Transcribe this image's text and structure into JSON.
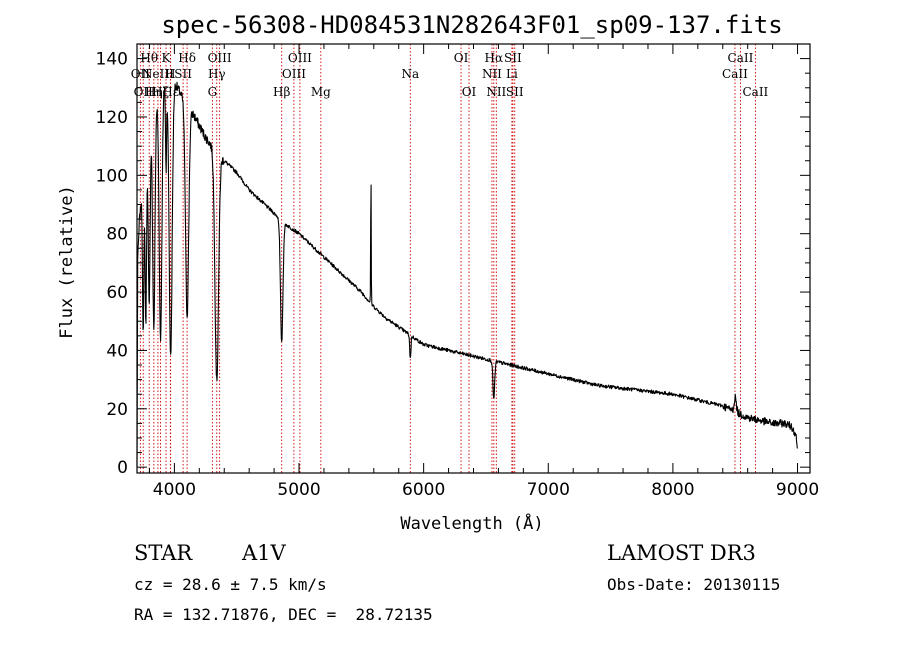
{
  "chart_data": {
    "type": "line",
    "title": "spec-56308-HD084531N282643F01_sp09-137.fits",
    "xlabel": "Wavelength (Å)",
    "ylabel": "Flux (relative)",
    "xlim": [
      3700,
      9100
    ],
    "ylim": [
      -2,
      145
    ],
    "xticks": [
      4000,
      5000,
      6000,
      7000,
      8000,
      9000
    ],
    "xtick_labels": [
      "4000",
      "5000",
      "6000",
      "7000",
      "8000",
      "9000"
    ],
    "yticks": [
      0,
      20,
      40,
      60,
      80,
      100,
      120,
      140
    ],
    "ytick_labels": [
      "0",
      "20",
      "40",
      "60",
      "80",
      "100",
      "120",
      "140"
    ],
    "continuum": [
      [
        3700,
        0
      ],
      [
        3705,
        70
      ],
      [
        3720,
        85
      ],
      [
        3760,
        100
      ],
      [
        3800,
        115
      ],
      [
        3850,
        125
      ],
      [
        3900,
        130
      ],
      [
        3950,
        133
      ],
      [
        4000,
        132
      ],
      [
        4050,
        128
      ],
      [
        4100,
        124
      ],
      [
        4150,
        121
      ],
      [
        4200,
        117
      ],
      [
        4250,
        113
      ],
      [
        4300,
        110
      ],
      [
        4350,
        107
      ],
      [
        4400,
        105
      ],
      [
        4450,
        103
      ],
      [
        4500,
        101
      ],
      [
        4600,
        95
      ],
      [
        4700,
        91
      ],
      [
        4800,
        87
      ],
      [
        4900,
        83
      ],
      [
        5000,
        80
      ],
      [
        5100,
        76
      ],
      [
        5200,
        72
      ],
      [
        5300,
        68
      ],
      [
        5400,
        64
      ],
      [
        5500,
        60
      ],
      [
        5600,
        55
      ],
      [
        5700,
        51
      ],
      [
        5800,
        48
      ],
      [
        5900,
        45
      ],
      [
        6000,
        42
      ],
      [
        6200,
        40
      ],
      [
        6400,
        38
      ],
      [
        6600,
        36
      ],
      [
        6800,
        34
      ],
      [
        7000,
        32
      ],
      [
        7200,
        30
      ],
      [
        7400,
        28
      ],
      [
        7600,
        27
      ],
      [
        7800,
        26
      ],
      [
        8000,
        25
      ],
      [
        8200,
        23
      ],
      [
        8400,
        21
      ],
      [
        8500,
        19
      ],
      [
        8600,
        17
      ],
      [
        8700,
        16
      ],
      [
        8800,
        15
      ],
      [
        8900,
        15
      ],
      [
        8950,
        14
      ],
      [
        8990,
        11
      ],
      [
        9000,
        4
      ]
    ],
    "absorption": [
      {
        "wave": 3750,
        "depth": 50,
        "width": 8
      },
      {
        "wave": 3771,
        "depth": 55,
        "width": 8
      },
      {
        "wave": 3798,
        "depth": 60,
        "width": 10
      },
      {
        "wave": 3835,
        "depth": 75,
        "width": 13
      },
      {
        "wave": 3889,
        "depth": 85,
        "width": 15
      },
      {
        "wave": 3933,
        "depth": 30,
        "width": 6
      },
      {
        "wave": 3970,
        "depth": 95,
        "width": 17
      },
      {
        "wave": 4102,
        "depth": 72,
        "width": 18
      },
      {
        "wave": 4340,
        "depth": 78,
        "width": 20
      },
      {
        "wave": 4861,
        "depth": 42,
        "width": 14
      },
      {
        "wave": 5893,
        "depth": 8,
        "width": 7
      },
      {
        "wave": 6563,
        "depth": 13,
        "width": 10
      }
    ],
    "emission": [
      {
        "wave": 5577,
        "height": 45,
        "width": 3
      },
      {
        "wave": 8500,
        "height": 5,
        "width": 12
      }
    ],
    "line_marks": [
      {
        "wave": 3727,
        "label": "OII",
        "row": 2
      },
      {
        "wave": 3750,
        "label": "OII",
        "row": 3
      },
      {
        "wave": 3798,
        "label": "Hθ",
        "row": 1
      },
      {
        "wave": 3835,
        "label": "Hη",
        "row": 3
      },
      {
        "wave": 3868,
        "label": "NeIII",
        "row": 2
      },
      {
        "wave": 3889,
        "label": "Hζ",
        "row": 3
      },
      {
        "wave": 3933,
        "label": "K",
        "row": 1
      },
      {
        "wave": 3968,
        "label": "H",
        "row": 2
      },
      {
        "wave": 3970,
        "label": "Hε",
        "row": 3
      },
      {
        "wave": 4070,
        "label": "SII",
        "row": 2
      },
      {
        "wave": 4102,
        "label": "Hδ",
        "row": 1
      },
      {
        "wave": 4305,
        "label": "G",
        "row": 3
      },
      {
        "wave": 4340,
        "label": "Hγ",
        "row": 2
      },
      {
        "wave": 4363,
        "label": "OIII",
        "row": 1
      },
      {
        "wave": 4861,
        "label": "Hβ",
        "row": 3
      },
      {
        "wave": 4959,
        "label": "OIII",
        "row": 2
      },
      {
        "wave": 5007,
        "label": "OIII",
        "row": 1
      },
      {
        "wave": 5175,
        "label": "Mg",
        "row": 3
      },
      {
        "wave": 5893,
        "label": "Na",
        "row": 2
      },
      {
        "wave": 6300,
        "label": "OI",
        "row": 1
      },
      {
        "wave": 6364,
        "label": "OI",
        "row": 3
      },
      {
        "wave": 6548,
        "label": "NII",
        "row": 2
      },
      {
        "wave": 6563,
        "label": "Hα",
        "row": 1
      },
      {
        "wave": 6583,
        "label": "NII",
        "row": 3
      },
      {
        "wave": 6708,
        "label": "Li",
        "row": 2
      },
      {
        "wave": 6716,
        "label": "SII",
        "row": 1
      },
      {
        "wave": 6731,
        "label": "SII",
        "row": 3
      },
      {
        "wave": 8498,
        "label": "CaII",
        "row": 2
      },
      {
        "wave": 8542,
        "label": "CaII",
        "row": 1
      },
      {
        "wave": 8662,
        "label": "CaII",
        "row": 3
      }
    ]
  },
  "info": {
    "object_class": "STAR",
    "subclass": "A1V",
    "survey": "LAMOST DR3",
    "cz": "cz = 28.6 ± 7.5 km/s",
    "obs_date": "Obs-Date: 20130115",
    "coords": "RA = 132.71876, DEC =  28.72135"
  },
  "colors": {
    "spectrum": "#000000",
    "line_marker": "#cc0000",
    "axis": "#000000"
  }
}
